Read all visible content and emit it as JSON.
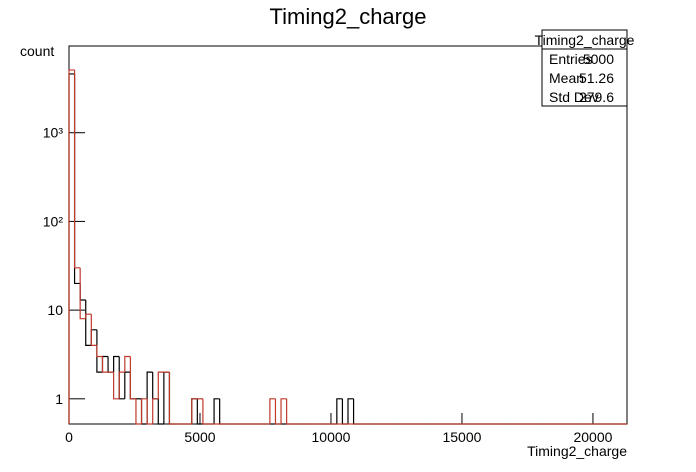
{
  "chart_data": {
    "type": "histogram",
    "title": "Timing2_charge",
    "xlabel": "Timing2_charge",
    "ylabel": "count",
    "bins": [
      0,
      213,
      426,
      639,
      852,
      1065,
      1278,
      1491,
      1704,
      1917,
      2130,
      2343,
      2556,
      2769,
      2982,
      3195,
      3408,
      3621,
      3834,
      4047,
      4260,
      4473,
      4686,
      4899,
      5112,
      5325,
      5538,
      5751,
      5964,
      6177,
      6390,
      6603,
      6816,
      7029,
      7242,
      7455,
      7668,
      7881,
      8094,
      8307,
      8520,
      8733,
      8946,
      9159,
      9372,
      9585,
      9798,
      10011,
      10224,
      10437,
      10650,
      10863,
      11076,
      11289,
      11502,
      11715,
      11928,
      12141,
      12354,
      12567,
      12780,
      12993,
      13206,
      13419,
      13632,
      13845,
      14058,
      14271,
      14484,
      14697,
      14910,
      15123,
      15336,
      15549,
      15762,
      15975,
      16188,
      16401,
      16614,
      16827,
      17040,
      17253,
      17466,
      17679,
      17892,
      18105,
      18318,
      18531,
      18744,
      18957,
      19170,
      19383,
      19596,
      19809,
      20022,
      20235,
      20448,
      20661,
      20874,
      21087,
      21300
    ],
    "series": [
      {
        "color": "#000000",
        "values": [
          4600,
          20,
          13,
          4,
          6,
          2,
          3,
          2,
          3,
          1,
          2,
          1,
          1,
          0,
          2,
          1,
          0,
          2,
          0,
          0,
          0,
          0,
          1,
          0,
          0,
          0,
          1,
          0,
          0,
          0,
          0,
          0,
          0,
          0,
          0,
          0,
          0,
          0,
          0,
          0,
          0,
          0,
          0,
          0,
          0,
          0,
          0,
          0,
          1,
          0,
          1,
          0,
          0,
          0,
          0,
          0,
          0,
          0,
          0,
          0,
          0,
          0,
          0,
          0,
          0,
          0,
          0,
          0,
          0,
          0,
          0,
          0,
          0,
          0,
          0,
          0,
          0,
          0,
          0,
          0,
          0,
          0,
          0,
          0,
          0,
          0,
          0,
          0,
          0,
          0,
          0,
          0,
          0,
          0,
          0,
          0,
          0,
          0,
          0,
          0
        ]
      },
      {
        "color": "#c0392b",
        "values": [
          5100,
          30,
          8,
          9,
          4,
          3,
          2,
          2,
          1,
          2,
          3,
          1,
          0,
          1,
          0,
          1,
          2,
          2,
          0,
          0,
          0,
          0,
          1,
          1,
          0,
          0,
          0,
          0,
          0,
          0,
          0,
          0,
          0,
          0,
          0,
          0,
          1,
          0,
          1,
          0,
          0,
          0,
          0,
          0,
          0,
          0,
          0,
          0,
          0,
          0,
          0,
          0,
          0,
          0,
          0,
          0,
          0,
          0,
          0,
          0,
          0,
          0,
          0,
          0,
          0,
          0,
          0,
          0,
          0,
          0,
          0,
          0,
          0,
          0,
          0,
          0,
          0,
          0,
          0,
          0,
          0,
          0,
          0,
          0,
          0,
          0,
          0,
          0,
          0,
          0,
          0,
          0,
          0,
          0,
          0,
          0,
          0,
          0,
          0,
          0
        ]
      }
    ],
    "xlim": [
      0,
      21300
    ],
    "xticks": [
      0,
      5000,
      10000,
      15000,
      20000
    ],
    "ylim": [
      0.52,
      9500
    ],
    "ylog": true,
    "yticks": [
      1,
      10,
      {
        "value": 100,
        "label": "10²"
      },
      {
        "value": 1000,
        "label": "10³"
      }
    ],
    "stats": {
      "title": "Timing2_charge",
      "rows": [
        {
          "label": "Entries",
          "value": 5000
        },
        {
          "label": "Mean",
          "value": 51.26
        },
        {
          "label": "Std Dev",
          "value": 279.6
        }
      ]
    }
  }
}
